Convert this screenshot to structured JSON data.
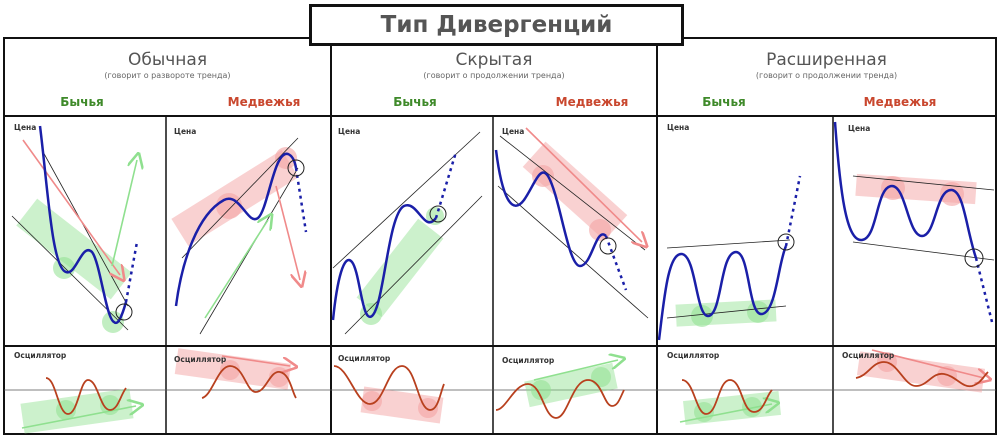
{
  "title": "Тип Дивергенций",
  "groups": [
    {
      "name": "Обычная",
      "subtitle": "(говорит о развороте тренда)"
    },
    {
      "name": "Скрытая",
      "subtitle": "(говорит о продолжении тренда)"
    },
    {
      "name": "Расширенная",
      "subtitle": "(говорит о продолжении тренда)"
    }
  ],
  "columns": [
    "Бычья",
    "Медвежья",
    "Бычья",
    "Медвежья",
    "Бычья",
    "Медвежья"
  ],
  "price_label": "Цена",
  "oscillator_label": "Осциллятор",
  "colors": {
    "price_line": "#1a1fa8",
    "oscillator_line": "#b8401e",
    "bullish": "#3f8a2a",
    "bearish": "#c9472e",
    "green_highlight": "#8fe08f",
    "red_highlight": "#f4a3a3"
  }
}
